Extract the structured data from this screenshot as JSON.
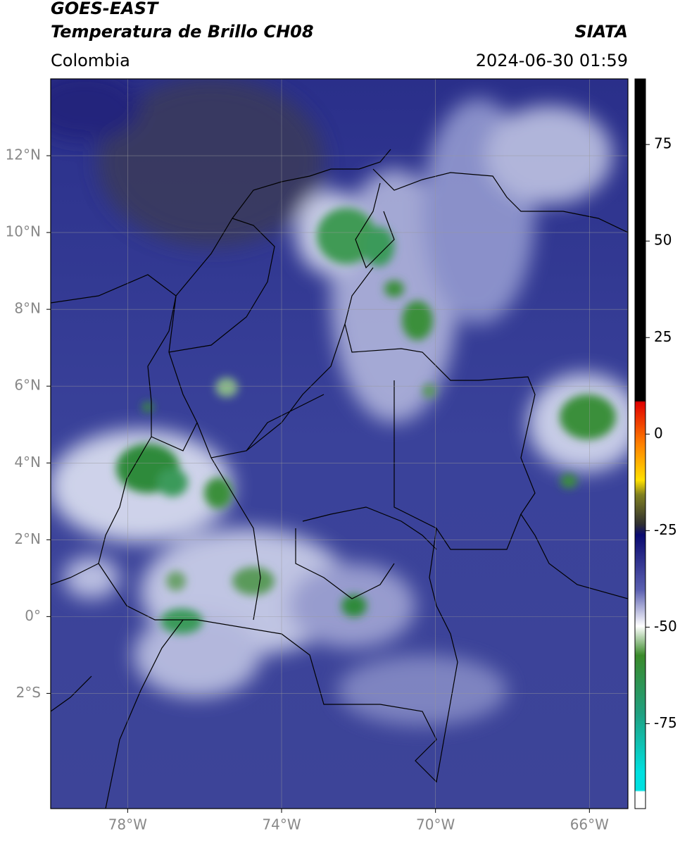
{
  "header": {
    "title": "GOES-EAST",
    "subtitle": "Temperatura de Brillo CH08",
    "source": "SIATA",
    "region": "Colombia",
    "datetime": "2024-06-30 01:59"
  },
  "map": {
    "xlim": [
      -80,
      -65
    ],
    "ylim": [
      -5,
      14
    ],
    "xticks": [
      {
        "value": -78,
        "label": "78°W"
      },
      {
        "value": -74,
        "label": "74°W"
      },
      {
        "value": -70,
        "label": "70°W"
      },
      {
        "value": -66,
        "label": "66°W"
      }
    ],
    "yticks": [
      {
        "value": 12,
        "label": "12°N"
      },
      {
        "value": 10,
        "label": "10°N"
      },
      {
        "value": 8,
        "label": "8°N"
      },
      {
        "value": 6,
        "label": "6°N"
      },
      {
        "value": 4,
        "label": "4°N"
      },
      {
        "value": 2,
        "label": "2°N"
      },
      {
        "value": 0,
        "label": "0°"
      },
      {
        "value": -2,
        "label": "2°S"
      }
    ],
    "grid": true
  },
  "colorbar": {
    "lim": [
      -97,
      92
    ],
    "ticks": [
      75,
      50,
      25,
      0,
      -25,
      -50,
      -75
    ]
  }
}
